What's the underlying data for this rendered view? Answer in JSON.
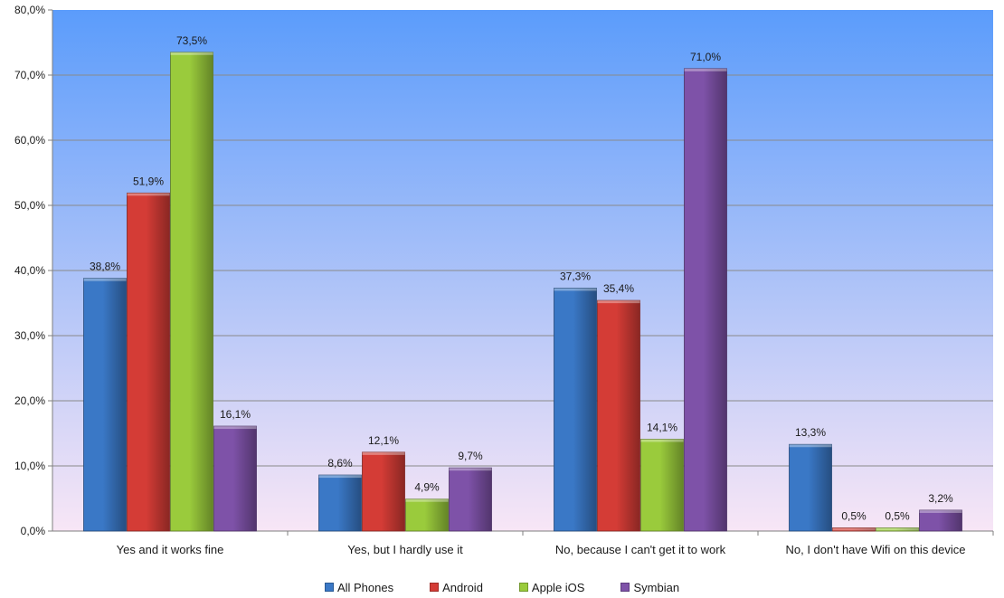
{
  "chart_data": {
    "type": "bar",
    "title": "",
    "xlabel": "",
    "ylabel": "",
    "ylim": [
      0,
      80
    ],
    "yticks": [
      "0,0%",
      "10,0%",
      "20,0%",
      "30,0%",
      "40,0%",
      "50,0%",
      "60,0%",
      "70,0%",
      "80,0%"
    ],
    "grid": true,
    "legend_position": "bottom",
    "categories": [
      "Yes and it works fine",
      "Yes, but I hardly use it",
      "No, because I can't get it to work",
      "No, I don't have Wifi on this device"
    ],
    "series": [
      {
        "name": "All Phones",
        "color": "#3a78c6",
        "values": [
          38.8,
          8.6,
          37.3,
          13.3
        ],
        "labels": [
          "38,8%",
          "8,6%",
          "37,3%",
          "13,3%"
        ]
      },
      {
        "name": "Android",
        "color": "#d43c36",
        "values": [
          51.9,
          12.1,
          35.4,
          0.5
        ],
        "labels": [
          "51,9%",
          "12,1%",
          "35,4%",
          "0,5%"
        ]
      },
      {
        "name": "Apple iOS",
        "color": "#9acb3c",
        "values": [
          73.5,
          4.9,
          14.1,
          0.5
        ],
        "labels": [
          "73,5%",
          "4,9%",
          "14,1%",
          "0,5%"
        ]
      },
      {
        "name": "Symbian",
        "color": "#7e52a8",
        "values": [
          16.1,
          9.7,
          71.0,
          3.2
        ],
        "labels": [
          "16,1%",
          "9,7%",
          "71,0%",
          "3,2%"
        ]
      }
    ],
    "background": {
      "top_color": "#5b9cfb",
      "bottom_color": "#f8e6f6"
    }
  }
}
